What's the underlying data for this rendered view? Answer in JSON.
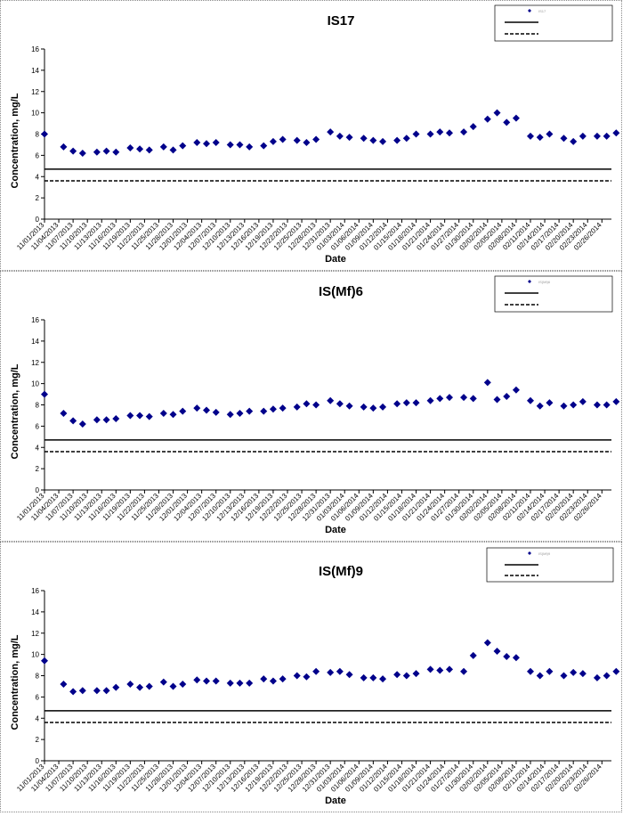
{
  "colors": {
    "marker": "#00008B",
    "axis": "#000000",
    "solid_line": "#000000",
    "dashed_line": "#000000"
  },
  "chart_data": [
    {
      "type": "scatter",
      "title": "IS17",
      "xlabel": "Date",
      "ylabel": "Concentration, mg/L",
      "ylim": [
        0,
        16
      ],
      "yticks": [
        0,
        2,
        4,
        6,
        8,
        10,
        12,
        14,
        16
      ],
      "grid": false,
      "legend_position": "top-right",
      "legend_entries": [
        "IS17",
        "",
        ""
      ],
      "x_tick_labels": [
        "11/01/2013",
        "11/04/2013",
        "11/07/2013",
        "11/10/2013",
        "11/13/2013",
        "11/16/2013",
        "11/19/2013",
        "11/22/2013",
        "11/25/2013",
        "11/28/2013",
        "12/01/2013",
        "12/04/2013",
        "12/07/2013",
        "12/10/2013",
        "12/13/2013",
        "12/16/2013",
        "12/19/2013",
        "12/22/2013",
        "12/25/2013",
        "12/28/2013",
        "12/31/2013",
        "01/03/2014",
        "01/06/2014",
        "01/09/2014",
        "01/12/2014",
        "01/15/2014",
        "01/18/2014",
        "01/21/2014",
        "01/24/2014",
        "01/27/2014",
        "01/30/2014",
        "02/02/2014",
        "02/05/2014",
        "02/08/2014",
        "02/11/2014",
        "02/14/2014",
        "02/17/2014",
        "02/20/2014",
        "02/23/2014",
        "02/26/2014"
      ],
      "xlim": [
        "11/01/2013",
        "02/28/2014"
      ],
      "reference_lines": [
        {
          "style": "solid",
          "value": 4.7
        },
        {
          "style": "dashed",
          "value": 3.6
        }
      ],
      "points": [
        [
          "11/01/2013",
          8.0
        ],
        [
          "11/05/2013",
          6.8
        ],
        [
          "11/07/2013",
          6.4
        ],
        [
          "11/09/2013",
          6.2
        ],
        [
          "11/12/2013",
          6.3
        ],
        [
          "11/14/2013",
          6.4
        ],
        [
          "11/16/2013",
          6.3
        ],
        [
          "11/19/2013",
          6.7
        ],
        [
          "11/21/2013",
          6.6
        ],
        [
          "11/23/2013",
          6.5
        ],
        [
          "11/26/2013",
          6.8
        ],
        [
          "11/28/2013",
          6.5
        ],
        [
          "11/30/2013",
          6.9
        ],
        [
          "12/03/2013",
          7.2
        ],
        [
          "12/05/2013",
          7.1
        ],
        [
          "12/07/2013",
          7.2
        ],
        [
          "12/10/2013",
          7.0
        ],
        [
          "12/12/2013",
          7.0
        ],
        [
          "12/14/2013",
          6.8
        ],
        [
          "12/17/2013",
          6.9
        ],
        [
          "12/19/2013",
          7.3
        ],
        [
          "12/21/2013",
          7.5
        ],
        [
          "12/24/2013",
          7.4
        ],
        [
          "12/26/2013",
          7.2
        ],
        [
          "12/28/2013",
          7.5
        ],
        [
          "12/31/2013",
          8.2
        ],
        [
          "01/02/2014",
          7.8
        ],
        [
          "01/04/2014",
          7.7
        ],
        [
          "01/07/2014",
          7.6
        ],
        [
          "01/09/2014",
          7.4
        ],
        [
          "01/11/2014",
          7.3
        ],
        [
          "01/14/2014",
          7.4
        ],
        [
          "01/16/2014",
          7.6
        ],
        [
          "01/18/2014",
          8.0
        ],
        [
          "01/21/2014",
          8.0
        ],
        [
          "01/23/2014",
          8.2
        ],
        [
          "01/25/2014",
          8.1
        ],
        [
          "01/28/2014",
          8.2
        ],
        [
          "01/30/2014",
          8.7
        ],
        [
          "02/02/2014",
          9.4
        ],
        [
          "02/04/2014",
          10.0
        ],
        [
          "02/06/2014",
          9.1
        ],
        [
          "02/08/2014",
          9.5
        ],
        [
          "02/11/2014",
          7.8
        ],
        [
          "02/13/2014",
          7.7
        ],
        [
          "02/15/2014",
          8.0
        ],
        [
          "02/18/2014",
          7.6
        ],
        [
          "02/20/2014",
          7.3
        ],
        [
          "02/22/2014",
          7.8
        ],
        [
          "02/25/2014",
          7.8
        ],
        [
          "02/27/2014",
          7.8
        ],
        [
          "03/01/2014",
          8.1
        ]
      ]
    },
    {
      "type": "scatter",
      "title": "IS(Mf)6",
      "xlabel": "Date",
      "ylabel": "Concentration, mg/L",
      "ylim": [
        0,
        16
      ],
      "yticks": [
        0,
        2,
        4,
        6,
        8,
        10,
        12,
        14,
        16
      ],
      "grid": false,
      "legend_position": "top-right",
      "legend_entries": [
        "IS(Mf)6",
        "",
        ""
      ],
      "x_tick_labels": [
        "11/01/2013",
        "11/04/2013",
        "11/07/2013",
        "11/10/2013",
        "11/13/2013",
        "11/16/2013",
        "11/19/2013",
        "11/22/2013",
        "11/25/2013",
        "11/28/2013",
        "12/01/2013",
        "12/04/2013",
        "12/07/2013",
        "12/10/2013",
        "12/13/2013",
        "12/16/2013",
        "12/19/2013",
        "12/22/2013",
        "12/25/2013",
        "12/28/2013",
        "12/31/2013",
        "01/03/2014",
        "01/06/2014",
        "01/09/2014",
        "01/12/2014",
        "01/15/2014",
        "01/18/2014",
        "01/21/2014",
        "01/24/2014",
        "01/27/2014",
        "01/30/2014",
        "02/02/2014",
        "02/05/2014",
        "02/08/2014",
        "02/11/2014",
        "02/14/2014",
        "02/17/2014",
        "02/20/2014",
        "02/23/2014",
        "02/26/2014"
      ],
      "xlim": [
        "11/01/2013",
        "02/28/2014"
      ],
      "reference_lines": [
        {
          "style": "solid",
          "value": 4.7
        },
        {
          "style": "dashed",
          "value": 3.6
        }
      ],
      "points": [
        [
          "11/01/2013",
          9.0
        ],
        [
          "11/05/2013",
          7.2
        ],
        [
          "11/07/2013",
          6.5
        ],
        [
          "11/09/2013",
          6.2
        ],
        [
          "11/12/2013",
          6.6
        ],
        [
          "11/14/2013",
          6.6
        ],
        [
          "11/16/2013",
          6.7
        ],
        [
          "11/19/2013",
          7.0
        ],
        [
          "11/21/2013",
          7.0
        ],
        [
          "11/23/2013",
          6.9
        ],
        [
          "11/26/2013",
          7.2
        ],
        [
          "11/28/2013",
          7.1
        ],
        [
          "11/30/2013",
          7.4
        ],
        [
          "12/03/2013",
          7.7
        ],
        [
          "12/05/2013",
          7.5
        ],
        [
          "12/07/2013",
          7.3
        ],
        [
          "12/10/2013",
          7.1
        ],
        [
          "12/12/2013",
          7.2
        ],
        [
          "12/14/2013",
          7.4
        ],
        [
          "12/17/2013",
          7.4
        ],
        [
          "12/19/2013",
          7.6
        ],
        [
          "12/21/2013",
          7.7
        ],
        [
          "12/24/2013",
          7.8
        ],
        [
          "12/26/2013",
          8.1
        ],
        [
          "12/28/2013",
          8.0
        ],
        [
          "12/31/2013",
          8.4
        ],
        [
          "01/02/2014",
          8.1
        ],
        [
          "01/04/2014",
          7.9
        ],
        [
          "01/07/2014",
          7.8
        ],
        [
          "01/09/2014",
          7.7
        ],
        [
          "01/11/2014",
          7.8
        ],
        [
          "01/14/2014",
          8.1
        ],
        [
          "01/16/2014",
          8.2
        ],
        [
          "01/18/2014",
          8.2
        ],
        [
          "01/21/2014",
          8.4
        ],
        [
          "01/23/2014",
          8.6
        ],
        [
          "01/25/2014",
          8.7
        ],
        [
          "01/28/2014",
          8.7
        ],
        [
          "01/30/2014",
          8.6
        ],
        [
          "02/02/2014",
          10.1
        ],
        [
          "02/04/2014",
          8.5
        ],
        [
          "02/06/2014",
          8.8
        ],
        [
          "02/08/2014",
          9.4
        ],
        [
          "02/11/2014",
          8.4
        ],
        [
          "02/13/2014",
          7.9
        ],
        [
          "02/15/2014",
          8.2
        ],
        [
          "02/18/2014",
          7.9
        ],
        [
          "02/20/2014",
          8.0
        ],
        [
          "02/22/2014",
          8.3
        ],
        [
          "02/25/2014",
          8.0
        ],
        [
          "02/27/2014",
          8.0
        ],
        [
          "03/01/2014",
          8.3
        ]
      ]
    },
    {
      "type": "scatter",
      "title": "IS(Mf)9",
      "xlabel": "Date",
      "ylabel": "Concentration, mg/L",
      "ylim": [
        0,
        16
      ],
      "yticks": [
        0,
        2,
        4,
        6,
        8,
        10,
        12,
        14,
        16
      ],
      "grid": false,
      "legend_position": "top-right",
      "legend_entries": [
        "IS(Mf)9",
        "",
        ""
      ],
      "x_tick_labels": [
        "11/01/2013",
        "11/04/2013",
        "11/07/2013",
        "11/10/2013",
        "11/13/2013",
        "11/16/2013",
        "11/19/2013",
        "11/22/2013",
        "11/25/2013",
        "11/28/2013",
        "12/01/2013",
        "12/04/2013",
        "12/07/2013",
        "12/10/2013",
        "12/13/2013",
        "12/16/2013",
        "12/19/2013",
        "12/22/2013",
        "12/25/2013",
        "12/28/2013",
        "12/31/2013",
        "01/03/2014",
        "01/06/2014",
        "01/09/2014",
        "01/12/2014",
        "01/15/2014",
        "01/18/2014",
        "01/21/2014",
        "01/24/2014",
        "01/27/2014",
        "01/30/2014",
        "02/02/2014",
        "02/05/2014",
        "02/08/2014",
        "02/11/2014",
        "02/14/2014",
        "02/17/2014",
        "02/20/2014",
        "02/23/2014",
        "02/26/2014"
      ],
      "xlim": [
        "11/01/2013",
        "02/28/2014"
      ],
      "reference_lines": [
        {
          "style": "solid",
          "value": 4.7
        },
        {
          "style": "dashed",
          "value": 3.6
        }
      ],
      "points": [
        [
          "11/01/2013",
          9.4
        ],
        [
          "11/05/2013",
          7.2
        ],
        [
          "11/07/2013",
          6.5
        ],
        [
          "11/09/2013",
          6.6
        ],
        [
          "11/12/2013",
          6.6
        ],
        [
          "11/14/2013",
          6.6
        ],
        [
          "11/16/2013",
          6.9
        ],
        [
          "11/19/2013",
          7.2
        ],
        [
          "11/21/2013",
          6.9
        ],
        [
          "11/23/2013",
          7.0
        ],
        [
          "11/26/2013",
          7.4
        ],
        [
          "11/28/2013",
          7.0
        ],
        [
          "11/30/2013",
          7.2
        ],
        [
          "12/03/2013",
          7.6
        ],
        [
          "12/05/2013",
          7.5
        ],
        [
          "12/07/2013",
          7.5
        ],
        [
          "12/10/2013",
          7.3
        ],
        [
          "12/12/2013",
          7.3
        ],
        [
          "12/14/2013",
          7.3
        ],
        [
          "12/17/2013",
          7.7
        ],
        [
          "12/19/2013",
          7.5
        ],
        [
          "12/21/2013",
          7.7
        ],
        [
          "12/24/2013",
          8.0
        ],
        [
          "12/26/2013",
          7.9
        ],
        [
          "12/28/2013",
          8.4
        ],
        [
          "12/31/2013",
          8.3
        ],
        [
          "01/02/2014",
          8.4
        ],
        [
          "01/04/2014",
          8.1
        ],
        [
          "01/07/2014",
          7.8
        ],
        [
          "01/09/2014",
          7.8
        ],
        [
          "01/11/2014",
          7.7
        ],
        [
          "01/14/2014",
          8.1
        ],
        [
          "01/16/2014",
          8.0
        ],
        [
          "01/18/2014",
          8.2
        ],
        [
          "01/21/2014",
          8.6
        ],
        [
          "01/23/2014",
          8.5
        ],
        [
          "01/25/2014",
          8.6
        ],
        [
          "01/28/2014",
          8.4
        ],
        [
          "01/30/2014",
          9.9
        ],
        [
          "02/02/2014",
          11.1
        ],
        [
          "02/04/2014",
          10.3
        ],
        [
          "02/06/2014",
          9.8
        ],
        [
          "02/08/2014",
          9.7
        ],
        [
          "02/11/2014",
          8.4
        ],
        [
          "02/13/2014",
          8.0
        ],
        [
          "02/15/2014",
          8.4
        ],
        [
          "02/18/2014",
          8.0
        ],
        [
          "02/20/2014",
          8.3
        ],
        [
          "02/22/2014",
          8.2
        ],
        [
          "02/25/2014",
          7.8
        ],
        [
          "02/27/2014",
          8.0
        ],
        [
          "03/01/2014",
          8.4
        ]
      ]
    }
  ]
}
